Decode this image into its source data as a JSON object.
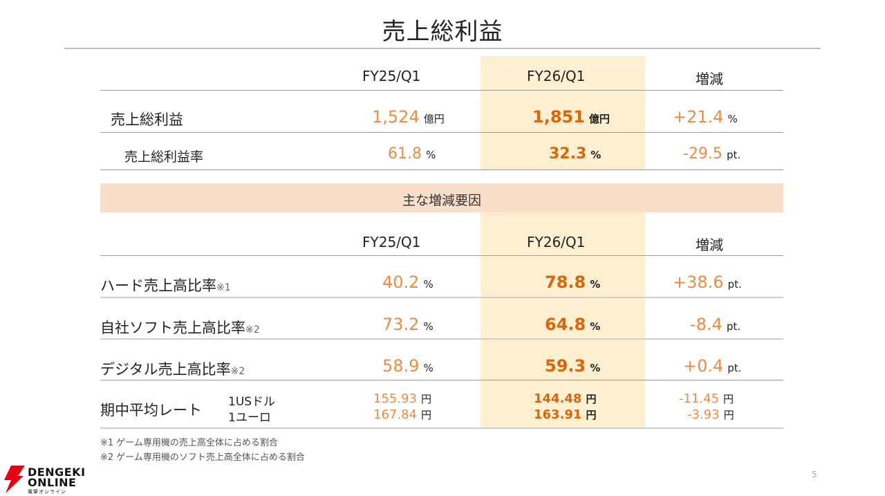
{
  "title": "売上総利益",
  "headers": {
    "prev": "FY25/Q1",
    "curr": "FY26/Q1",
    "diff": "増減"
  },
  "gross_profit": {
    "label": "売上総利益",
    "prev": "1,524",
    "prev_unit": "億円",
    "curr": "1,851",
    "curr_unit": "億円",
    "diff": "+21.4",
    "diff_unit": "%"
  },
  "gross_margin": {
    "label": "売上総利益率",
    "prev": "61.8",
    "prev_unit": "%",
    "curr": "32.3",
    "curr_unit": "%",
    "diff": "-29.5",
    "diff_unit": "pt."
  },
  "section_title": "主な増減要因",
  "headers2": {
    "prev": "FY25/Q1",
    "curr": "FY26/Q1",
    "diff": "増減"
  },
  "factors": [
    {
      "label": "ハード売上高比率",
      "note": "※1",
      "prev": "40.2",
      "prev_unit": "%",
      "curr": "78.8",
      "curr_unit": "%",
      "diff": "+38.6",
      "diff_unit": "pt."
    },
    {
      "label": "自社ソフト売上高比率",
      "note": "※2",
      "prev": "73.2",
      "prev_unit": "%",
      "curr": "64.8",
      "curr_unit": "%",
      "diff": "-8.4",
      "diff_unit": "pt."
    },
    {
      "label": "デジタル売上高比率",
      "note": "※2",
      "prev": "58.9",
      "prev_unit": "%",
      "curr": "59.3",
      "curr_unit": "%",
      "diff": "+0.4",
      "diff_unit": "pt."
    }
  ],
  "fx": {
    "label": "期中平均レート",
    "usd_label": "1USドル",
    "eur_label": "1ユーロ",
    "usd_prev": "155.93",
    "eur_prev": "167.84",
    "usd_curr": "144.48",
    "eur_curr": "163.91",
    "usd_diff": "-11.45",
    "eur_diff": "-3.93",
    "unit": "円"
  },
  "notes": [
    "※1 ゲーム専用機の売上高全体に占める割合",
    "※2 ゲーム専用機のソフト売上高全体に占める割合"
  ],
  "page_number": "5",
  "logo": {
    "line1": "DENGEKI",
    "line2": "ONLINE",
    "sub": "電撃オンライン"
  },
  "colors": {
    "highlight": "#fdefcf",
    "band": "#f9dfc9",
    "accent": "#ed8a43",
    "accent_bold": "#d8660d"
  }
}
